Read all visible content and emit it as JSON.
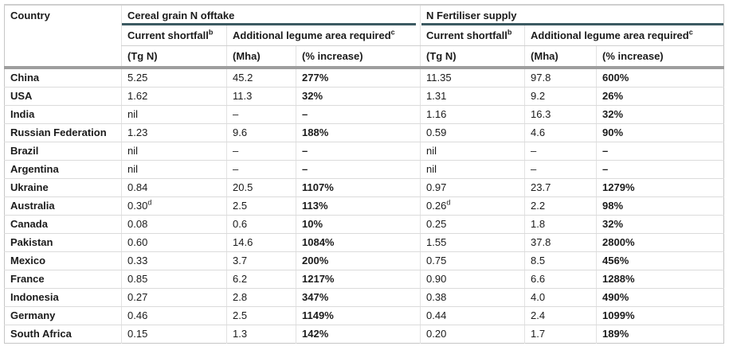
{
  "table": {
    "headers": {
      "country": "Country",
      "group_cereal": "Cereal grain N offtake",
      "group_fertiliser": "N Fertiliser supply",
      "shortfall": "Current shortfall",
      "shortfall_note": "b",
      "legume_area": "Additional legume area required",
      "legume_area_note": "c",
      "unit_tgn": "(Tg N)",
      "unit_mha": "(Mha)",
      "unit_pct": "(% increase)"
    },
    "rows": [
      {
        "country": "China",
        "cereal": {
          "tgn": "5.25",
          "tgn_note": "",
          "mha": "45.2",
          "pct": "277%"
        },
        "fertiliser": {
          "tgn": "11.35",
          "tgn_note": "",
          "mha": "97.8",
          "pct": "600%"
        }
      },
      {
        "country": "USA",
        "cereal": {
          "tgn": "1.62",
          "tgn_note": "",
          "mha": "11.3",
          "pct": "32%"
        },
        "fertiliser": {
          "tgn": "1.31",
          "tgn_note": "",
          "mha": "9.2",
          "pct": "26%"
        }
      },
      {
        "country": "India",
        "cereal": {
          "tgn": "nil",
          "tgn_note": "",
          "mha": "–",
          "pct": "–"
        },
        "fertiliser": {
          "tgn": "1.16",
          "tgn_note": "",
          "mha": "16.3",
          "pct": "32%"
        }
      },
      {
        "country": "Russian Federation",
        "cereal": {
          "tgn": "1.23",
          "tgn_note": "",
          "mha": "9.6",
          "pct": "188%"
        },
        "fertiliser": {
          "tgn": "0.59",
          "tgn_note": "",
          "mha": "4.6",
          "pct": "90%"
        }
      },
      {
        "country": "Brazil",
        "cereal": {
          "tgn": "nil",
          "tgn_note": "",
          "mha": "–",
          "pct": "–"
        },
        "fertiliser": {
          "tgn": "nil",
          "tgn_note": "",
          "mha": "–",
          "pct": "–"
        }
      },
      {
        "country": "Argentina",
        "cereal": {
          "tgn": "nil",
          "tgn_note": "",
          "mha": "–",
          "pct": "–"
        },
        "fertiliser": {
          "tgn": "nil",
          "tgn_note": "",
          "mha": "–",
          "pct": "–"
        }
      },
      {
        "country": "Ukraine",
        "cereal": {
          "tgn": "0.84",
          "tgn_note": "",
          "mha": "20.5",
          "pct": "1107%"
        },
        "fertiliser": {
          "tgn": "0.97",
          "tgn_note": "",
          "mha": "23.7",
          "pct": "1279%"
        }
      },
      {
        "country": "Australia",
        "cereal": {
          "tgn": "0.30",
          "tgn_note": "d",
          "mha": "2.5",
          "pct": "113%"
        },
        "fertiliser": {
          "tgn": "0.26",
          "tgn_note": "d",
          "mha": "2.2",
          "pct": "98%"
        }
      },
      {
        "country": "Canada",
        "cereal": {
          "tgn": "0.08",
          "tgn_note": "",
          "mha": "0.6",
          "pct": "10%"
        },
        "fertiliser": {
          "tgn": "0.25",
          "tgn_note": "",
          "mha": "1.8",
          "pct": "32%"
        }
      },
      {
        "country": "Pakistan",
        "cereal": {
          "tgn": "0.60",
          "tgn_note": "",
          "mha": "14.6",
          "pct": "1084%"
        },
        "fertiliser": {
          "tgn": "1.55",
          "tgn_note": "",
          "mha": "37.8",
          "pct": "2800%"
        }
      },
      {
        "country": "Mexico",
        "cereal": {
          "tgn": "0.33",
          "tgn_note": "",
          "mha": "3.7",
          "pct": "200%"
        },
        "fertiliser": {
          "tgn": "0.75",
          "tgn_note": "",
          "mha": "8.5",
          "pct": "456%"
        }
      },
      {
        "country": "France",
        "cereal": {
          "tgn": "0.85",
          "tgn_note": "",
          "mha": "6.2",
          "pct": "1217%"
        },
        "fertiliser": {
          "tgn": "0.90",
          "tgn_note": "",
          "mha": "6.6",
          "pct": "1288%"
        }
      },
      {
        "country": "Indonesia",
        "cereal": {
          "tgn": "0.27",
          "tgn_note": "",
          "mha": "2.8",
          "pct": "347%"
        },
        "fertiliser": {
          "tgn": "0.38",
          "tgn_note": "",
          "mha": "4.0",
          "pct": "490%"
        }
      },
      {
        "country": "Germany",
        "cereal": {
          "tgn": "0.46",
          "tgn_note": "",
          "mha": "2.5",
          "pct": "1149%"
        },
        "fertiliser": {
          "tgn": "0.44",
          "tgn_note": "",
          "mha": "2.4",
          "pct": "1099%"
        }
      },
      {
        "country": "South Africa",
        "cereal": {
          "tgn": "0.15",
          "tgn_note": "",
          "mha": "1.3",
          "pct": "142%"
        },
        "fertiliser": {
          "tgn": "0.20",
          "tgn_note": "",
          "mha": "1.7",
          "pct": "189%"
        }
      }
    ]
  },
  "colors": {
    "group_underline": "#3c5a62",
    "header_body_divider": "#9e9e9e",
    "row_separator": "#dbdbdb",
    "column_separator": "#e2e2e2",
    "outer_border": "#c6c6c6",
    "text": "#1b1b1b"
  }
}
